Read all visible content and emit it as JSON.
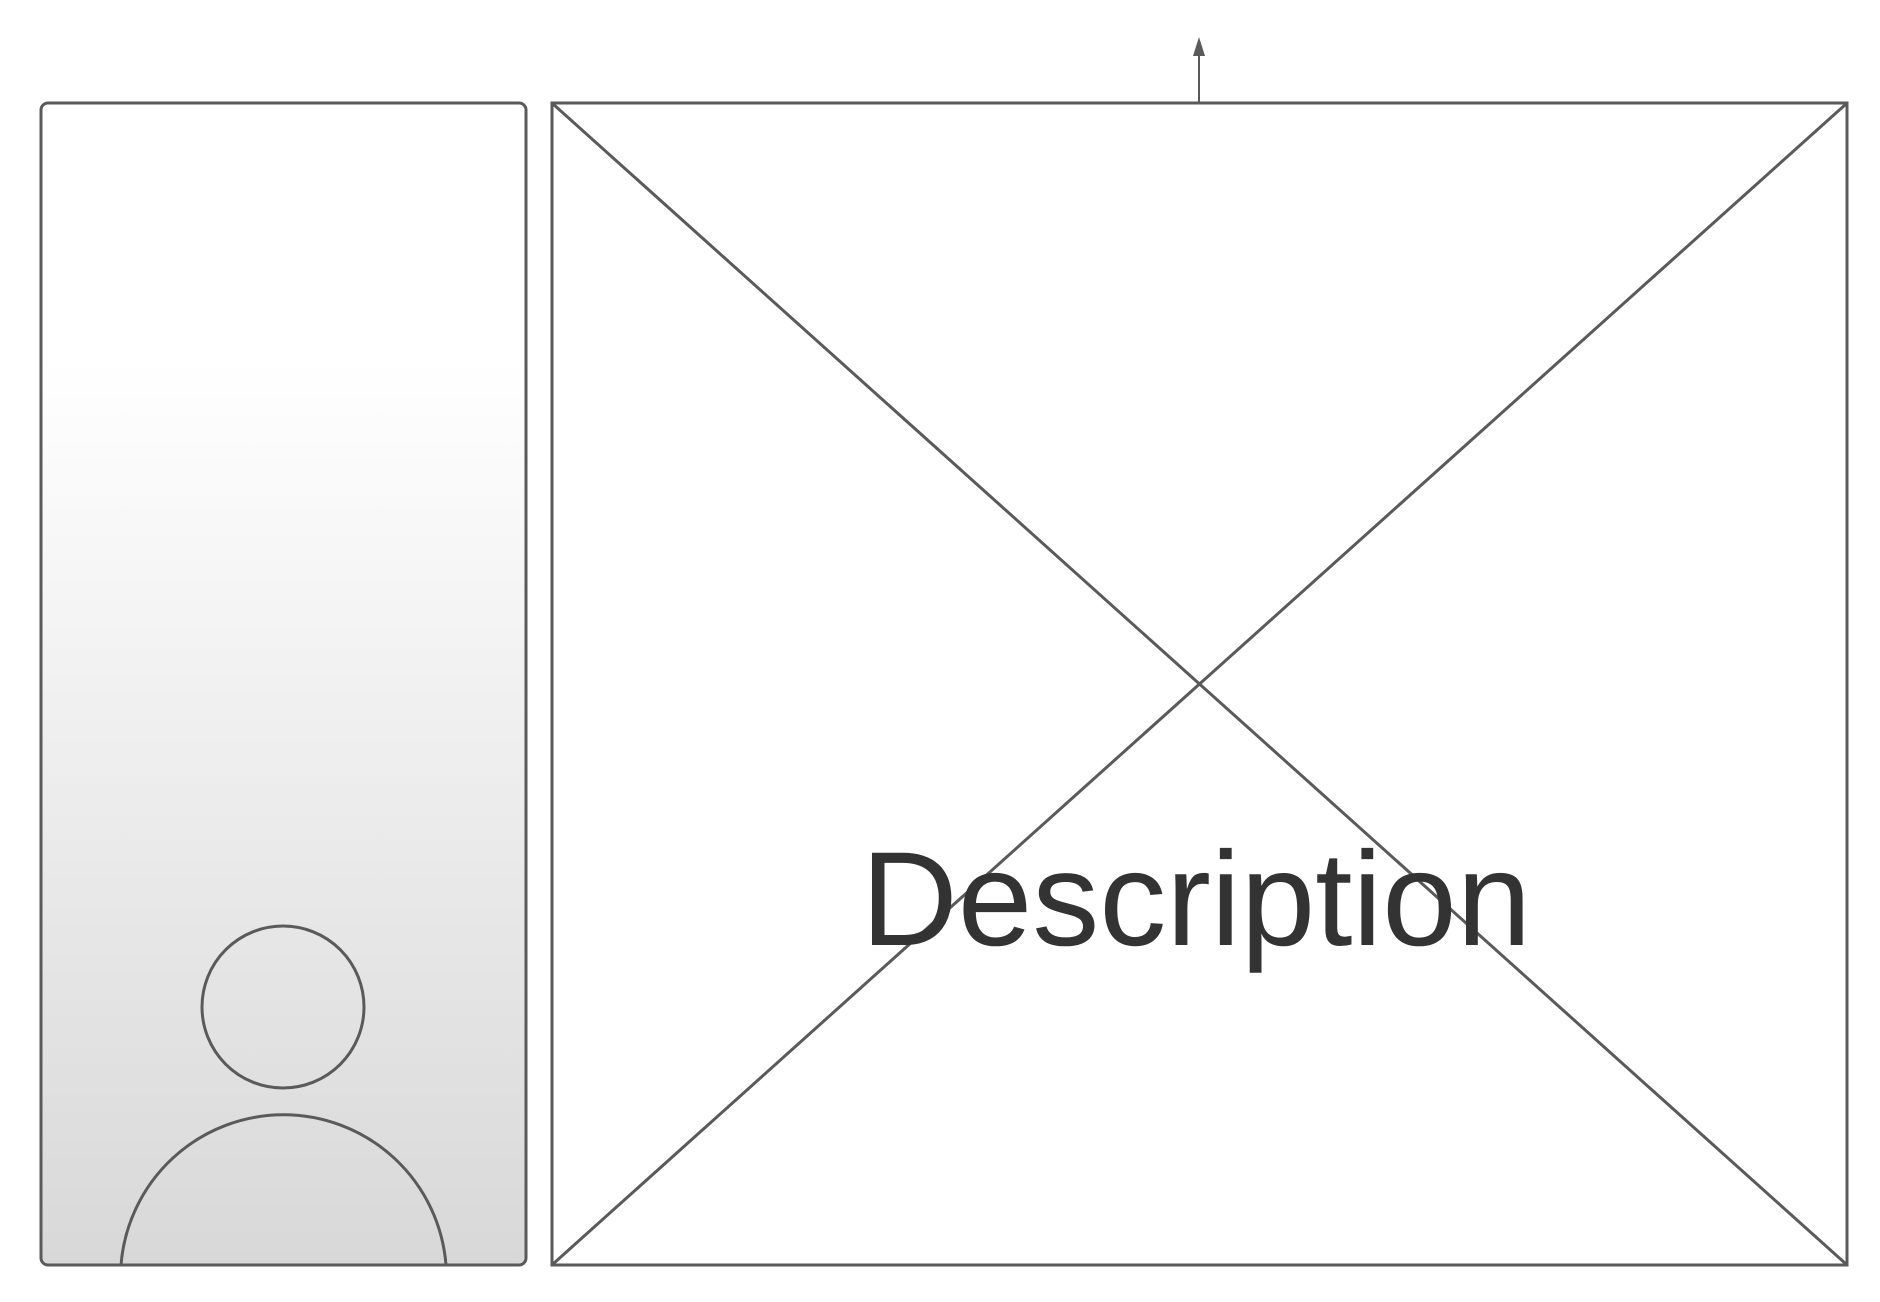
{
  "diagram": {
    "description_label": "Description",
    "colors": {
      "stroke": "#5a5a5a",
      "text": "#333333",
      "panel_gradient_top": "#ffffff",
      "panel_gradient_bottom": "#d8d8d8",
      "background": "#ffffff"
    },
    "icons": {
      "avatar": "user-silhouette-icon",
      "image_placeholder": "image-placeholder-icon",
      "arrow": "arrow-up-icon"
    }
  }
}
